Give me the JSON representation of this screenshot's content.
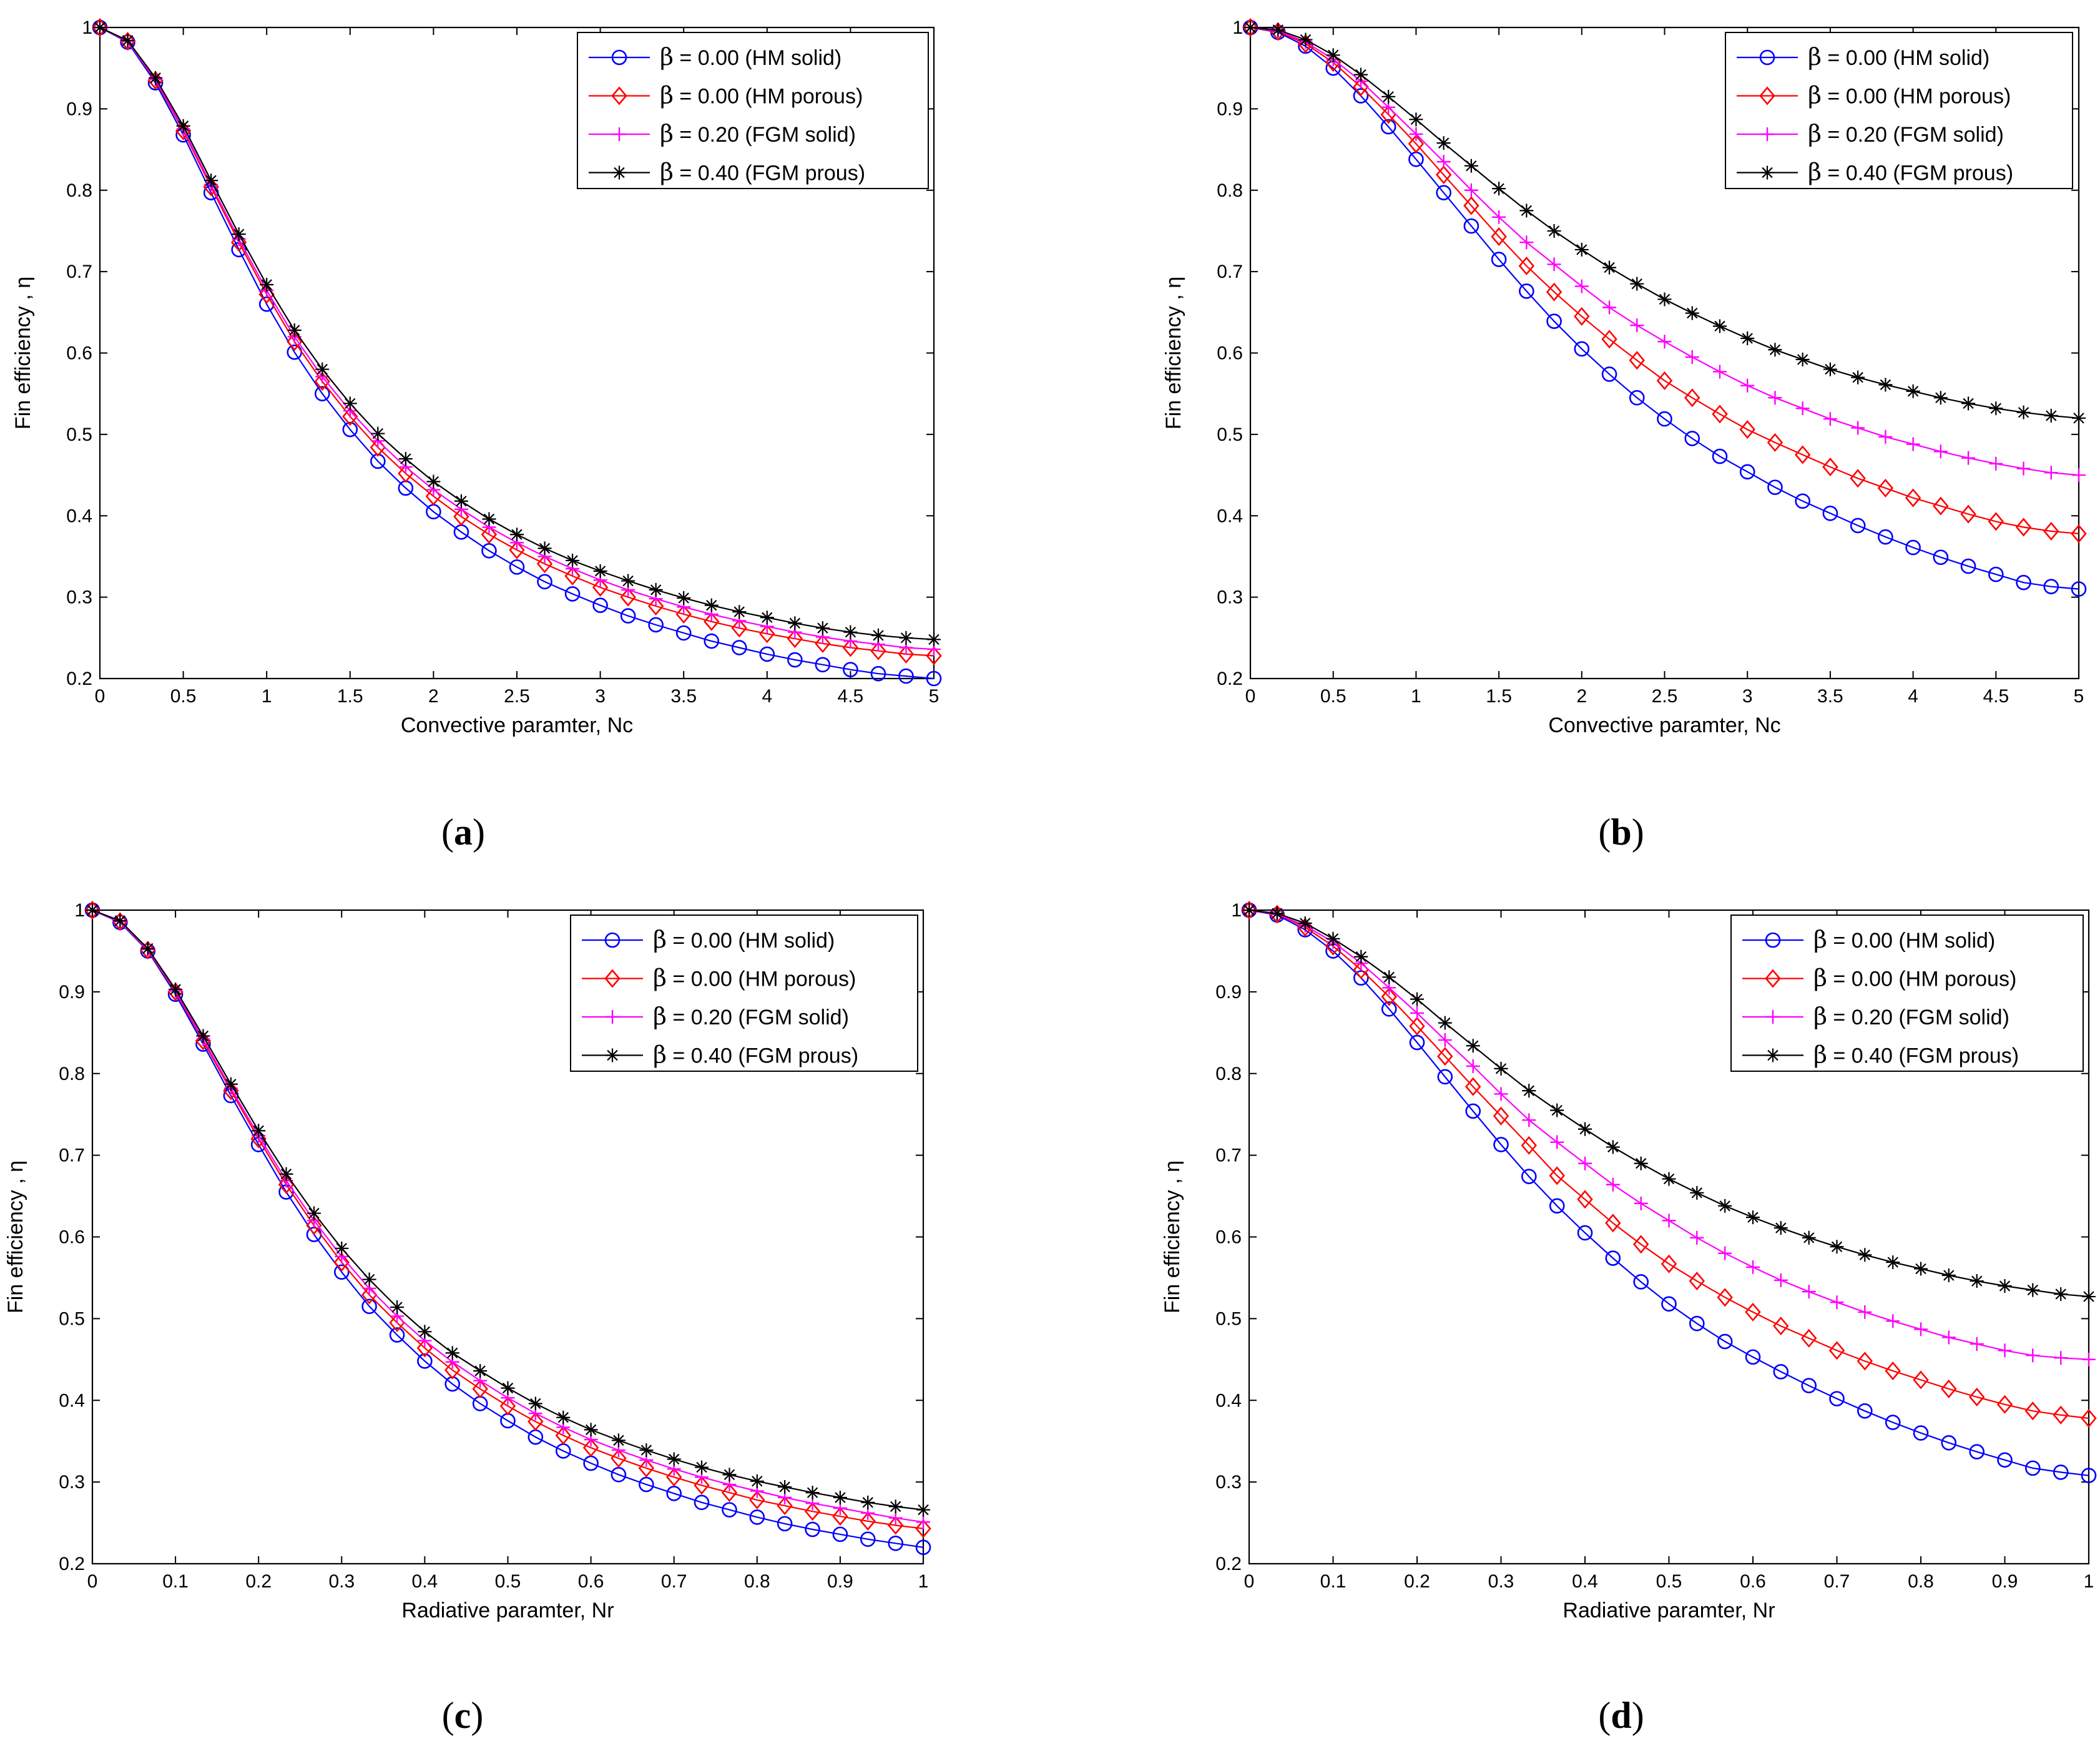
{
  "chart_data": [
    {
      "type": "line",
      "panel": "a",
      "caption": {
        "open": "(",
        "letter": "a",
        "close": ")"
      },
      "xlabel": "Convective paramter, Nc",
      "ylabel": "Fin efficiency , η",
      "xlim": [
        0,
        5
      ],
      "ylim": [
        0.2,
        1
      ],
      "xticks": [
        0,
        0.5,
        1,
        1.5,
        2,
        2.5,
        3,
        3.5,
        4,
        4.5,
        5
      ],
      "xtick_labels": [
        "0",
        "0.5",
        "1",
        "1.5",
        "2",
        "2.5",
        "3",
        "3.5",
        "4",
        "4.5",
        "5"
      ],
      "yticks": [
        0.2,
        0.3,
        0.4,
        0.5,
        0.6,
        0.7,
        0.8,
        0.9,
        1
      ],
      "ytick_labels": [
        "0.2",
        "0.3",
        "0.4",
        "0.5",
        "0.6",
        "0.7",
        "0.8",
        "0.9",
        "1"
      ],
      "legend_position": "top-right",
      "x": [
        0,
        0.1667,
        0.3333,
        0.5,
        0.6667,
        0.8333,
        1,
        1.1667,
        1.3333,
        1.5,
        1.6667,
        1.8333,
        2,
        2.1667,
        2.3333,
        2.5,
        2.6667,
        2.8333,
        3,
        3.1667,
        3.3333,
        3.5,
        3.6667,
        3.8333,
        4,
        4.1667,
        4.3333,
        4.5,
        4.6667,
        4.8333,
        5
      ],
      "series": [
        {
          "beta": "β",
          "label": " = 0.00 (HM solid)",
          "color": "#0000ff",
          "marker": "circle",
          "values": [
            1,
            0.982,
            0.932,
            0.868,
            0.797,
            0.727,
            0.66,
            0.601,
            0.55,
            0.506,
            0.467,
            0.434,
            0.405,
            0.38,
            0.357,
            0.337,
            0.319,
            0.304,
            0.29,
            0.277,
            0.266,
            0.256,
            0.246,
            0.238,
            0.23,
            0.223,
            0.217,
            0.211,
            0.206,
            0.203,
            0.2
          ]
        },
        {
          "beta": "β",
          "label": " = 0.00 (HM porous)",
          "color": "#ff0000",
          "marker": "diamond",
          "values": [
            1,
            0.983,
            0.935,
            0.873,
            0.804,
            0.736,
            0.672,
            0.614,
            0.565,
            0.522,
            0.484,
            0.452,
            0.424,
            0.399,
            0.377,
            0.358,
            0.341,
            0.326,
            0.312,
            0.3,
            0.289,
            0.279,
            0.27,
            0.262,
            0.255,
            0.249,
            0.243,
            0.238,
            0.234,
            0.23,
            0.228
          ]
        },
        {
          "beta": "β",
          "label": " = 0.20 (FGM solid)",
          "color": "#ff00ff",
          "marker": "plus",
          "values": [
            1,
            0.983,
            0.936,
            0.875,
            0.807,
            0.74,
            0.677,
            0.62,
            0.571,
            0.529,
            0.492,
            0.46,
            0.432,
            0.408,
            0.386,
            0.367,
            0.35,
            0.335,
            0.321,
            0.309,
            0.298,
            0.288,
            0.279,
            0.271,
            0.264,
            0.257,
            0.251,
            0.246,
            0.242,
            0.238,
            0.236
          ]
        },
        {
          "beta": "β",
          "label": " = 0.40 (FGM prous)",
          "color": "#000000",
          "marker": "star",
          "values": [
            1,
            0.984,
            0.938,
            0.879,
            0.812,
            0.746,
            0.684,
            0.628,
            0.58,
            0.538,
            0.501,
            0.47,
            0.442,
            0.418,
            0.396,
            0.377,
            0.36,
            0.345,
            0.332,
            0.32,
            0.309,
            0.299,
            0.29,
            0.282,
            0.275,
            0.268,
            0.262,
            0.257,
            0.253,
            0.25,
            0.248
          ]
        }
      ]
    },
    {
      "type": "line",
      "panel": "b",
      "caption": {
        "open": "(",
        "letter": "b",
        "close": ")"
      },
      "xlabel": "Convective paramter, Nc",
      "ylabel": "Fin efficiency , η",
      "xlim": [
        0,
        5
      ],
      "ylim": [
        0.2,
        1
      ],
      "xticks": [
        0,
        0.5,
        1,
        1.5,
        2,
        2.5,
        3,
        3.5,
        4,
        4.5,
        5
      ],
      "xtick_labels": [
        "0",
        "0.5",
        "1",
        "1.5",
        "2",
        "2.5",
        "3",
        "3.5",
        "4",
        "4.5",
        "5"
      ],
      "yticks": [
        0.2,
        0.3,
        0.4,
        0.5,
        0.6,
        0.7,
        0.8,
        0.9,
        1
      ],
      "ytick_labels": [
        "0.2",
        "0.3",
        "0.4",
        "0.5",
        "0.6",
        "0.7",
        "0.8",
        "0.9",
        "1"
      ],
      "legend_position": "top-right",
      "x": [
        0,
        0.1667,
        0.3333,
        0.5,
        0.6667,
        0.8333,
        1,
        1.1667,
        1.3333,
        1.5,
        1.6667,
        1.8333,
        2,
        2.1667,
        2.3333,
        2.5,
        2.6667,
        2.8333,
        3,
        3.1667,
        3.3333,
        3.5,
        3.6667,
        3.8333,
        4,
        4.1667,
        4.3333,
        4.5,
        4.6667,
        4.8333,
        5
      ],
      "series": [
        {
          "beta": "β",
          "label": " = 0.00 (HM solid)",
          "color": "#0000ff",
          "marker": "circle",
          "values": [
            1,
            0.994,
            0.977,
            0.95,
            0.916,
            0.878,
            0.838,
            0.797,
            0.756,
            0.715,
            0.676,
            0.639,
            0.605,
            0.574,
            0.545,
            0.519,
            0.495,
            0.473,
            0.454,
            0.435,
            0.418,
            0.403,
            0.388,
            0.374,
            0.361,
            0.349,
            0.338,
            0.328,
            0.318,
            0.313,
            0.31
          ]
        },
        {
          "beta": "β",
          "label": " = 0.00 (HM porous)",
          "color": "#ff0000",
          "marker": "diamond",
          "values": [
            1,
            0.995,
            0.98,
            0.957,
            0.927,
            0.893,
            0.857,
            0.819,
            0.781,
            0.743,
            0.707,
            0.675,
            0.645,
            0.617,
            0.591,
            0.566,
            0.545,
            0.525,
            0.506,
            0.49,
            0.475,
            0.46,
            0.446,
            0.434,
            0.422,
            0.412,
            0.402,
            0.393,
            0.386,
            0.381,
            0.378
          ]
        },
        {
          "beta": "β",
          "label": " = 0.20 (FGM solid)",
          "color": "#ff00ff",
          "marker": "plus",
          "values": [
            1,
            0.996,
            0.982,
            0.961,
            0.934,
            0.902,
            0.869,
            0.835,
            0.8,
            0.767,
            0.736,
            0.709,
            0.682,
            0.656,
            0.634,
            0.614,
            0.595,
            0.577,
            0.56,
            0.545,
            0.532,
            0.519,
            0.508,
            0.497,
            0.488,
            0.479,
            0.471,
            0.464,
            0.458,
            0.453,
            0.45
          ]
        },
        {
          "beta": "β",
          "label": " = 0.40 (FGM prous)",
          "color": "#000000",
          "marker": "star",
          "values": [
            1,
            0.997,
            0.985,
            0.966,
            0.942,
            0.915,
            0.887,
            0.858,
            0.83,
            0.802,
            0.775,
            0.75,
            0.727,
            0.705,
            0.685,
            0.666,
            0.649,
            0.633,
            0.618,
            0.604,
            0.592,
            0.58,
            0.57,
            0.561,
            0.553,
            0.545,
            0.538,
            0.532,
            0.527,
            0.523,
            0.52
          ]
        }
      ]
    },
    {
      "type": "line",
      "panel": "c",
      "caption": {
        "open": "(",
        "letter": "c",
        "close": ")"
      },
      "xlabel": "Radiative paramter, Nr",
      "ylabel": "Fin efficiency , η",
      "xlim": [
        0,
        1
      ],
      "ylim": [
        0.2,
        1
      ],
      "xticks": [
        0,
        0.1,
        0.2,
        0.3,
        0.4,
        0.5,
        0.6,
        0.7,
        0.8,
        0.9,
        1
      ],
      "xtick_labels": [
        "0",
        "0.1",
        "0.2",
        "0.3",
        "0.4",
        "0.5",
        "0.6",
        "0.7",
        "0.8",
        "0.9",
        "1"
      ],
      "yticks": [
        0.2,
        0.3,
        0.4,
        0.5,
        0.6,
        0.7,
        0.8,
        0.9,
        1
      ],
      "ytick_labels": [
        "0.2",
        "0.3",
        "0.4",
        "0.5",
        "0.6",
        "0.7",
        "0.8",
        "0.9",
        "1"
      ],
      "legend_position": "top-right",
      "x": [
        0,
        0.0333,
        0.0667,
        0.1,
        0.1333,
        0.1667,
        0.2,
        0.2333,
        0.2667,
        0.3,
        0.3333,
        0.3667,
        0.4,
        0.4333,
        0.4667,
        0.5,
        0.5333,
        0.5667,
        0.6,
        0.6333,
        0.6667,
        0.7,
        0.7333,
        0.7667,
        0.8,
        0.8333,
        0.8667,
        0.9,
        0.9333,
        0.9667,
        1
      ],
      "series": [
        {
          "beta": "β",
          "label": " = 0.00 (HM solid)",
          "color": "#0000ff",
          "marker": "circle",
          "values": [
            1,
            0.985,
            0.95,
            0.897,
            0.836,
            0.773,
            0.713,
            0.655,
            0.603,
            0.557,
            0.515,
            0.48,
            0.448,
            0.42,
            0.396,
            0.375,
            0.355,
            0.338,
            0.323,
            0.309,
            0.297,
            0.286,
            0.275,
            0.266,
            0.257,
            0.249,
            0.242,
            0.236,
            0.23,
            0.225,
            0.22
          ]
        },
        {
          "beta": "β",
          "label": " = 0.00 (HM porous)",
          "color": "#ff0000",
          "marker": "diamond",
          "values": [
            1,
            0.986,
            0.951,
            0.9,
            0.84,
            0.779,
            0.72,
            0.664,
            0.614,
            0.569,
            0.529,
            0.495,
            0.464,
            0.437,
            0.414,
            0.393,
            0.374,
            0.357,
            0.342,
            0.329,
            0.317,
            0.306,
            0.296,
            0.287,
            0.278,
            0.271,
            0.264,
            0.258,
            0.252,
            0.247,
            0.243
          ]
        },
        {
          "beta": "β",
          "label": " = 0.20 (FGM solid)",
          "color": "#ff00ff",
          "marker": "plus",
          "values": [
            1,
            0.986,
            0.952,
            0.901,
            0.842,
            0.782,
            0.724,
            0.669,
            0.62,
            0.576,
            0.537,
            0.503,
            0.473,
            0.447,
            0.424,
            0.403,
            0.384,
            0.367,
            0.352,
            0.339,
            0.327,
            0.316,
            0.306,
            0.297,
            0.289,
            0.281,
            0.274,
            0.268,
            0.262,
            0.256,
            0.251
          ]
        },
        {
          "beta": "β",
          "label": " = 0.40 (FGM prous)",
          "color": "#000000",
          "marker": "star",
          "values": [
            1,
            0.987,
            0.953,
            0.903,
            0.846,
            0.787,
            0.73,
            0.677,
            0.629,
            0.586,
            0.548,
            0.514,
            0.484,
            0.458,
            0.436,
            0.415,
            0.396,
            0.379,
            0.364,
            0.351,
            0.339,
            0.328,
            0.318,
            0.309,
            0.301,
            0.294,
            0.287,
            0.281,
            0.275,
            0.27,
            0.266
          ]
        }
      ]
    },
    {
      "type": "line",
      "panel": "d",
      "caption": {
        "open": "(",
        "letter": "d",
        "close": ")"
      },
      "xlabel": "Radiative paramter, Nr",
      "ylabel": "Fin efficiency , η",
      "xlim": [
        0,
        1
      ],
      "ylim": [
        0.2,
        1
      ],
      "xticks": [
        0,
        0.1,
        0.2,
        0.3,
        0.4,
        0.5,
        0.6,
        0.7,
        0.8,
        0.9,
        1
      ],
      "xtick_labels": [
        "0",
        "0.1",
        "0.2",
        "0.3",
        "0.4",
        "0.5",
        "0.6",
        "0.7",
        "0.8",
        "0.9",
        "1"
      ],
      "yticks": [
        0.2,
        0.3,
        0.4,
        0.5,
        0.6,
        0.7,
        0.8,
        0.9,
        1
      ],
      "ytick_labels": [
        "0.2",
        "0.3",
        "0.4",
        "0.5",
        "0.6",
        "0.7",
        "0.8",
        "0.9",
        "1"
      ],
      "legend_position": "top-right",
      "x": [
        0,
        0.0333,
        0.0667,
        0.1,
        0.1333,
        0.1667,
        0.2,
        0.2333,
        0.2667,
        0.3,
        0.3333,
        0.3667,
        0.4,
        0.4333,
        0.4667,
        0.5,
        0.5333,
        0.5667,
        0.6,
        0.6333,
        0.6667,
        0.7,
        0.7333,
        0.7667,
        0.8,
        0.8333,
        0.8667,
        0.9,
        0.9333,
        0.9667,
        1
      ],
      "series": [
        {
          "beta": "β",
          "label": " = 0.00 (HM solid)",
          "color": "#0000ff",
          "marker": "circle",
          "values": [
            1,
            0.994,
            0.976,
            0.95,
            0.917,
            0.879,
            0.838,
            0.796,
            0.754,
            0.713,
            0.674,
            0.638,
            0.605,
            0.574,
            0.545,
            0.518,
            0.494,
            0.472,
            0.453,
            0.435,
            0.418,
            0.402,
            0.387,
            0.373,
            0.36,
            0.348,
            0.337,
            0.327,
            0.317,
            0.312,
            0.308
          ]
        },
        {
          "beta": "β",
          "label": " = 0.00 (HM porous)",
          "color": "#ff0000",
          "marker": "diamond",
          "values": [
            1,
            0.995,
            0.979,
            0.956,
            0.927,
            0.894,
            0.858,
            0.821,
            0.784,
            0.748,
            0.712,
            0.675,
            0.646,
            0.617,
            0.591,
            0.567,
            0.546,
            0.526,
            0.508,
            0.491,
            0.476,
            0.461,
            0.448,
            0.436,
            0.425,
            0.414,
            0.404,
            0.395,
            0.387,
            0.382,
            0.378
          ]
        },
        {
          "beta": "β",
          "label": " = 0.20 (FGM solid)",
          "color": "#ff00ff",
          "marker": "plus",
          "values": [
            1,
            0.995,
            0.981,
            0.961,
            0.935,
            0.905,
            0.874,
            0.841,
            0.809,
            0.775,
            0.743,
            0.716,
            0.69,
            0.664,
            0.641,
            0.62,
            0.599,
            0.58,
            0.563,
            0.547,
            0.533,
            0.52,
            0.508,
            0.497,
            0.487,
            0.477,
            0.469,
            0.461,
            0.455,
            0.452,
            0.45
          ]
        },
        {
          "beta": "β",
          "label": " = 0.40 (FGM prous)",
          "color": "#000000",
          "marker": "star",
          "values": [
            1,
            0.996,
            0.984,
            0.965,
            0.943,
            0.918,
            0.891,
            0.862,
            0.834,
            0.806,
            0.779,
            0.755,
            0.732,
            0.71,
            0.69,
            0.671,
            0.654,
            0.638,
            0.624,
            0.611,
            0.599,
            0.588,
            0.578,
            0.569,
            0.561,
            0.553,
            0.546,
            0.54,
            0.535,
            0.53,
            0.527
          ]
        }
      ]
    }
  ]
}
